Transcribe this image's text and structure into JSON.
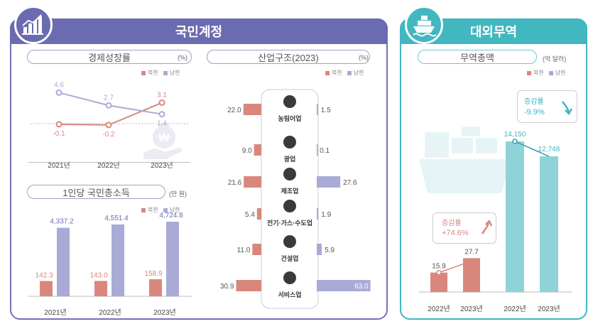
{
  "colors": {
    "north": "#d9877d",
    "south": "#aaaad6",
    "trade": "#8fd3d8",
    "purple_frame": "#6e6eb4",
    "teal_frame": "#42b7c0"
  },
  "left_panel": {
    "title": "국민계정"
  },
  "right_panel": {
    "title": "대외무역"
  },
  "legend": {
    "north": "북한",
    "south": "남한"
  },
  "growth": {
    "title": "경제성장률",
    "unit": "(%)",
    "chart_data": {
      "type": "line",
      "categories": [
        "2021년",
        "2022년",
        "2023년"
      ],
      "series": [
        {
          "name": "북한",
          "values": [
            -0.1,
            -0.2,
            3.1
          ],
          "labels": [
            "-0.1",
            "-0.2",
            "3.1"
          ]
        },
        {
          "name": "남한",
          "values": [
            4.6,
            2.7,
            1.4
          ],
          "labels": [
            "4.6",
            "2.7",
            "1.4"
          ]
        }
      ]
    }
  },
  "gni": {
    "title": "1인당 국민총소득",
    "unit": "(만 원)",
    "chart_data": {
      "type": "bar",
      "categories": [
        "2021년",
        "2022년",
        "2023년"
      ],
      "series": [
        {
          "name": "북한",
          "values": [
            142.3,
            143.0,
            158.9
          ],
          "labels": [
            "142.3",
            "143.0",
            "158.9"
          ]
        },
        {
          "name": "남한",
          "values": [
            4337.2,
            4551.4,
            4724.8
          ],
          "labels": [
            "4,337.2",
            "4,551.4",
            "4,724.8"
          ]
        }
      ]
    }
  },
  "industry": {
    "title": "산업구조(2023)",
    "unit": "(%)",
    "chart_data": {
      "type": "bar",
      "categories": [
        "농림어업",
        "광업",
        "제조업",
        "전기·가스·수도업",
        "건설업",
        "서비스업"
      ],
      "series": [
        {
          "name": "북한",
          "values": [
            22.0,
            9.0,
            21.6,
            5.4,
            11.0,
            30.9
          ],
          "labels": [
            "22.0",
            "9.0",
            "21.6",
            "5.4",
            "11.0",
            "30.9"
          ]
        },
        {
          "name": "남한",
          "values": [
            1.5,
            0.1,
            27.6,
            1.9,
            5.9,
            63.0
          ],
          "labels": [
            "1.5",
            "0.1",
            "27.6",
            "1.9",
            "5.9",
            "63.0"
          ]
        }
      ]
    }
  },
  "trade": {
    "title": "무역총액",
    "unit": "(억 달러)",
    "chart_data": {
      "type": "bar",
      "groups": [
        {
          "name": "북한",
          "categories": [
            "2022년",
            "2023년"
          ],
          "values": [
            15.9,
            27.7
          ],
          "labels": [
            "15.9",
            "27.7"
          ]
        },
        {
          "name": "남한",
          "categories": [
            "2022년",
            "2023년"
          ],
          "values": [
            14150,
            12748
          ],
          "labels": [
            "14,150",
            "12,748"
          ]
        }
      ]
    },
    "north_change": {
      "title": "증감률",
      "value": "+74.6%"
    },
    "south_change": {
      "title": "증감률",
      "value": "-9.9%"
    }
  }
}
